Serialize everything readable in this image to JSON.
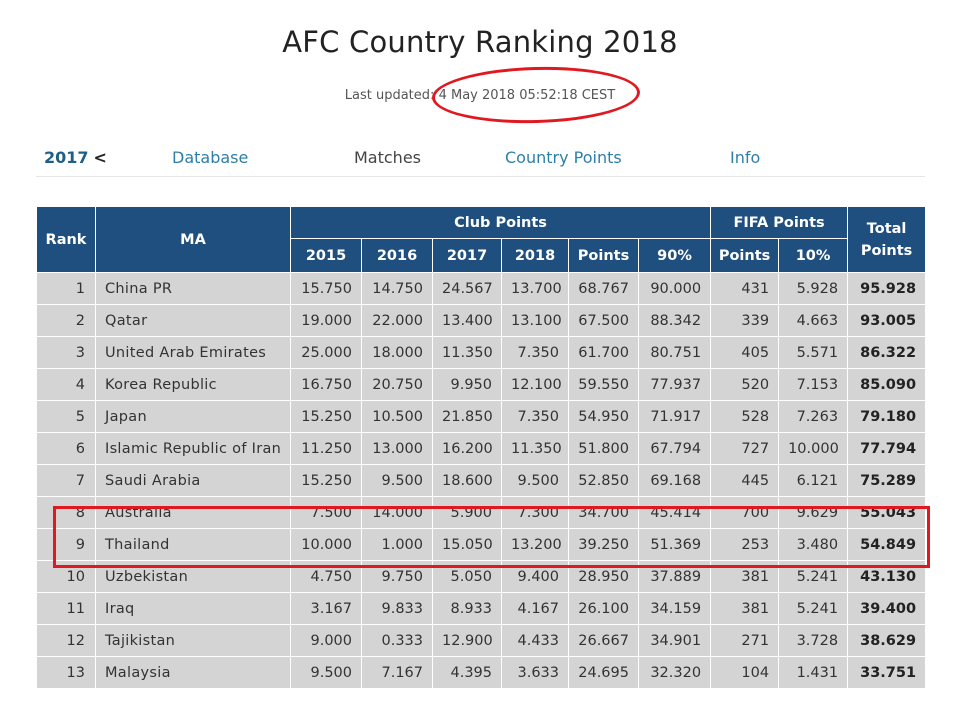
{
  "title": "AFC Country Ranking 2018",
  "last_updated": {
    "label": "Last updated",
    "separator": ":",
    "value": "4 May 2018 05:52:18 CEST"
  },
  "nav": {
    "year": "2017",
    "year_chevron": "<",
    "items": [
      "Database",
      "Matches",
      "Country Points",
      "Info"
    ]
  },
  "table": {
    "headers": {
      "rank": "Rank",
      "ma": "MA",
      "club_points": "Club Points",
      "fifa_points": "FIFA Points",
      "total_line1": "Total",
      "total_line2": "Points",
      "club_sub": [
        "2015",
        "2016",
        "2017",
        "2018",
        "Points",
        "90%"
      ],
      "fifa_sub": [
        "Points",
        "10%"
      ]
    },
    "rows": [
      {
        "rank": "1",
        "ma": "China PR",
        "y2015": "15.750",
        "y2016": "14.750",
        "y2017": "24.567",
        "y2018": "13.700",
        "points": "68.767",
        "p90": "90.000",
        "fifa": "431",
        "f10": "5.928",
        "total": "95.928"
      },
      {
        "rank": "2",
        "ma": "Qatar",
        "y2015": "19.000",
        "y2016": "22.000",
        "y2017": "13.400",
        "y2018": "13.100",
        "points": "67.500",
        "p90": "88.342",
        "fifa": "339",
        "f10": "4.663",
        "total": "93.005"
      },
      {
        "rank": "3",
        "ma": "United Arab Emirates",
        "y2015": "25.000",
        "y2016": "18.000",
        "y2017": "11.350",
        "y2018": "7.350",
        "points": "61.700",
        "p90": "80.751",
        "fifa": "405",
        "f10": "5.571",
        "total": "86.322"
      },
      {
        "rank": "4",
        "ma": "Korea Republic",
        "y2015": "16.750",
        "y2016": "20.750",
        "y2017": "9.950",
        "y2018": "12.100",
        "points": "59.550",
        "p90": "77.937",
        "fifa": "520",
        "f10": "7.153",
        "total": "85.090"
      },
      {
        "rank": "5",
        "ma": "Japan",
        "y2015": "15.250",
        "y2016": "10.500",
        "y2017": "21.850",
        "y2018": "7.350",
        "points": "54.950",
        "p90": "71.917",
        "fifa": "528",
        "f10": "7.263",
        "total": "79.180"
      },
      {
        "rank": "6",
        "ma": "Islamic Republic of Iran",
        "y2015": "11.250",
        "y2016": "13.000",
        "y2017": "16.200",
        "y2018": "11.350",
        "points": "51.800",
        "p90": "67.794",
        "fifa": "727",
        "f10": "10.000",
        "total": "77.794"
      },
      {
        "rank": "7",
        "ma": "Saudi Arabia",
        "y2015": "15.250",
        "y2016": "9.500",
        "y2017": "18.600",
        "y2018": "9.500",
        "points": "52.850",
        "p90": "69.168",
        "fifa": "445",
        "f10": "6.121",
        "total": "75.289"
      },
      {
        "rank": "8",
        "ma": "Australia",
        "y2015": "7.500",
        "y2016": "14.000",
        "y2017": "5.900",
        "y2018": "7.300",
        "points": "34.700",
        "p90": "45.414",
        "fifa": "700",
        "f10": "9.629",
        "total": "55.043"
      },
      {
        "rank": "9",
        "ma": "Thailand",
        "y2015": "10.000",
        "y2016": "1.000",
        "y2017": "15.050",
        "y2018": "13.200",
        "points": "39.250",
        "p90": "51.369",
        "fifa": "253",
        "f10": "3.480",
        "total": "54.849"
      },
      {
        "rank": "10",
        "ma": "Uzbekistan",
        "y2015": "4.750",
        "y2016": "9.750",
        "y2017": "5.050",
        "y2018": "9.400",
        "points": "28.950",
        "p90": "37.889",
        "fifa": "381",
        "f10": "5.241",
        "total": "43.130"
      },
      {
        "rank": "11",
        "ma": "Iraq",
        "y2015": "3.167",
        "y2016": "9.833",
        "y2017": "8.933",
        "y2018": "4.167",
        "points": "26.100",
        "p90": "34.159",
        "fifa": "381",
        "f10": "5.241",
        "total": "39.400"
      },
      {
        "rank": "12",
        "ma": "Tajikistan",
        "y2015": "9.000",
        "y2016": "0.333",
        "y2017": "12.900",
        "y2018": "4.433",
        "points": "26.667",
        "p90": "34.901",
        "fifa": "271",
        "f10": "3.728",
        "total": "38.629"
      },
      {
        "rank": "13",
        "ma": "Malaysia",
        "y2015": "9.500",
        "y2016": "7.167",
        "y2017": "4.395",
        "y2018": "3.633",
        "points": "24.695",
        "p90": "32.320",
        "fifa": "104",
        "f10": "1.431",
        "total": "33.751"
      }
    ]
  },
  "colors": {
    "header_bg": "#1f4f7f",
    "cell_bg": "#d4d4d4",
    "nav_link": "#2d7fa8",
    "annotation": "#e01820"
  }
}
